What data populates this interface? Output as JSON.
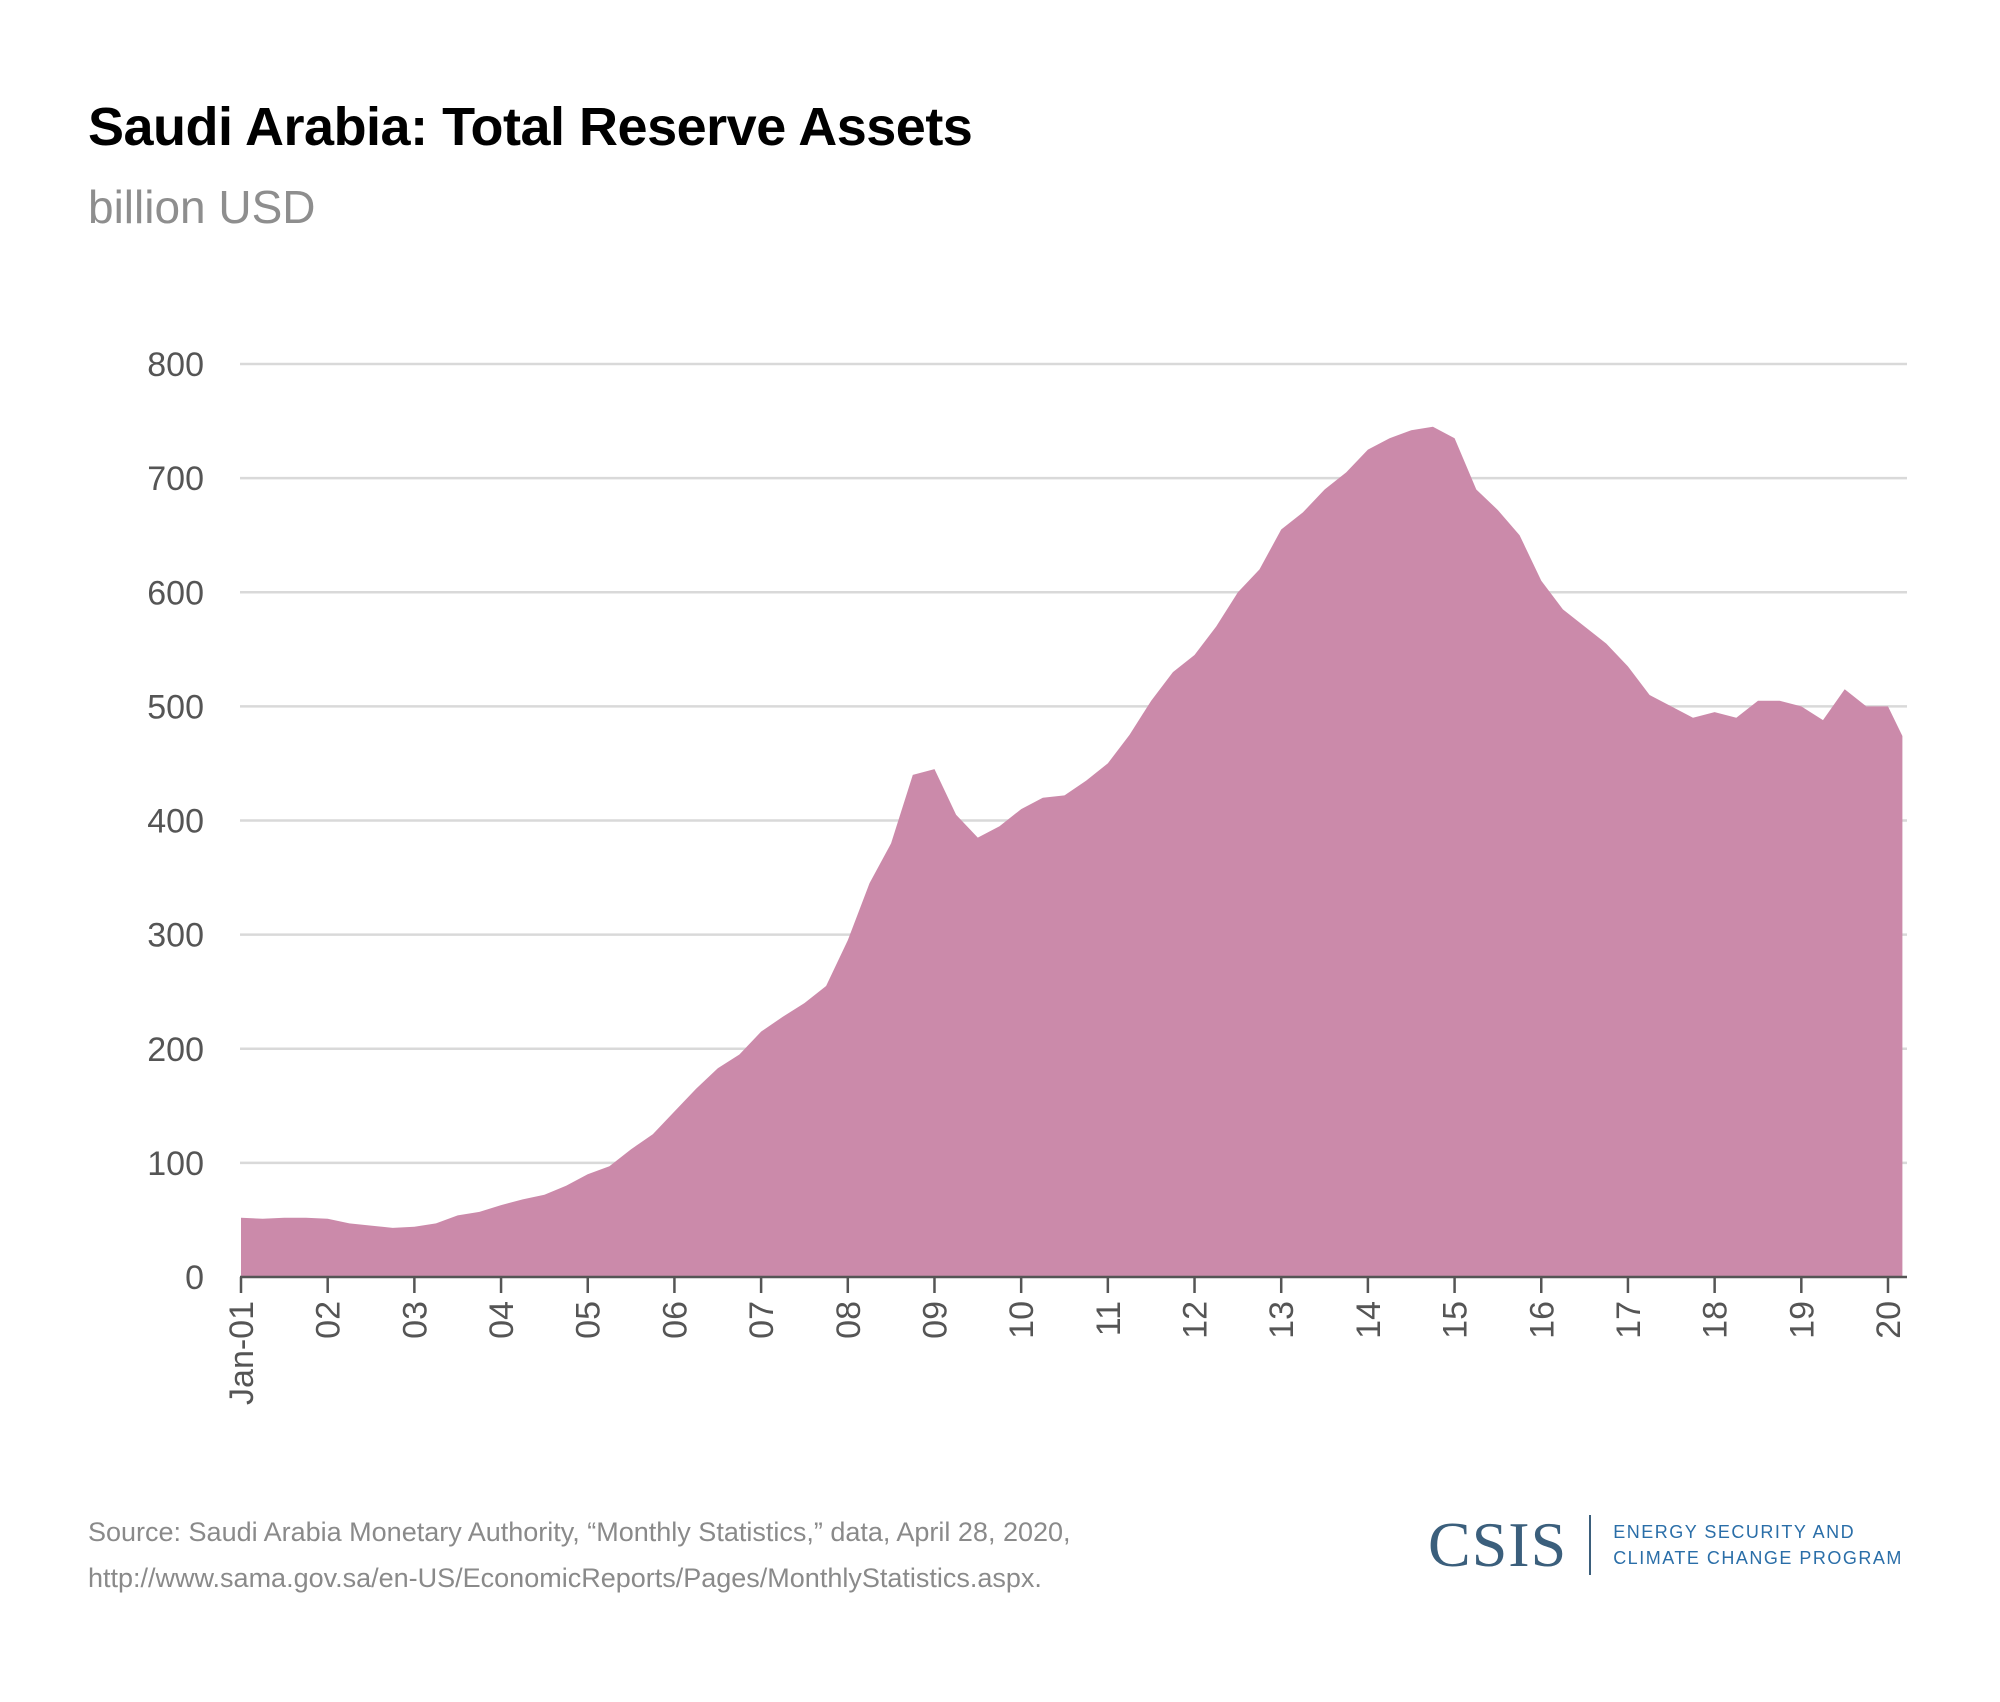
{
  "chart_data": {
    "type": "area",
    "title": "Saudi Arabia: Total Reserve Assets",
    "subtitle": "billion USD",
    "xlabel": "",
    "ylabel": "",
    "ylim": [
      0,
      800
    ],
    "yticks": [
      "0",
      "100",
      "200",
      "300",
      "400",
      "500",
      "600",
      "700",
      "800"
    ],
    "xticks": [
      {
        "date": "2001-01",
        "label": "Jan-01"
      },
      {
        "date": "2002-01",
        "label": "02"
      },
      {
        "date": "2003-01",
        "label": "03"
      },
      {
        "date": "2004-01",
        "label": "04"
      },
      {
        "date": "2005-01",
        "label": "05"
      },
      {
        "date": "2006-01",
        "label": "06"
      },
      {
        "date": "2007-01",
        "label": "07"
      },
      {
        "date": "2008-01",
        "label": "08"
      },
      {
        "date": "2009-01",
        "label": "09"
      },
      {
        "date": "2010-01",
        "label": "10"
      },
      {
        "date": "2011-01",
        "label": "11"
      },
      {
        "date": "2012-01",
        "label": "12"
      },
      {
        "date": "2013-01",
        "label": "13"
      },
      {
        "date": "2014-01",
        "label": "14"
      },
      {
        "date": "2015-01",
        "label": "15"
      },
      {
        "date": "2016-01",
        "label": "16"
      },
      {
        "date": "2017-01",
        "label": "17"
      },
      {
        "date": "2018-01",
        "label": "18"
      },
      {
        "date": "2019-01",
        "label": "19"
      },
      {
        "date": "2020-01",
        "label": "20"
      }
    ],
    "grid": true,
    "fill_color": "#cb8aaa",
    "x": [
      "2001-01",
      "2001-04",
      "2001-07",
      "2001-10",
      "2002-01",
      "2002-04",
      "2002-07",
      "2002-10",
      "2003-01",
      "2003-04",
      "2003-07",
      "2003-10",
      "2004-01",
      "2004-04",
      "2004-07",
      "2004-10",
      "2005-01",
      "2005-04",
      "2005-07",
      "2005-10",
      "2006-01",
      "2006-04",
      "2006-07",
      "2006-10",
      "2007-01",
      "2007-04",
      "2007-07",
      "2007-10",
      "2008-01",
      "2008-04",
      "2008-07",
      "2008-10",
      "2009-01",
      "2009-04",
      "2009-07",
      "2009-10",
      "2010-01",
      "2010-04",
      "2010-07",
      "2010-10",
      "2011-01",
      "2011-04",
      "2011-07",
      "2011-10",
      "2012-01",
      "2012-04",
      "2012-07",
      "2012-10",
      "2013-01",
      "2013-04",
      "2013-07",
      "2013-10",
      "2014-01",
      "2014-04",
      "2014-07",
      "2014-10",
      "2015-01",
      "2015-04",
      "2015-07",
      "2015-10",
      "2016-01",
      "2016-04",
      "2016-07",
      "2016-10",
      "2017-01",
      "2017-04",
      "2017-07",
      "2017-10",
      "2018-01",
      "2018-04",
      "2018-07",
      "2018-10",
      "2019-01",
      "2019-04",
      "2019-07",
      "2019-10",
      "2020-01",
      "2020-03"
    ],
    "values": [
      52,
      51,
      52,
      52,
      51,
      47,
      45,
      43,
      44,
      47,
      54,
      57,
      63,
      68,
      72,
      80,
      90,
      97,
      112,
      125,
      145,
      165,
      183,
      195,
      215,
      228,
      240,
      255,
      295,
      345,
      380,
      440,
      445,
      405,
      385,
      395,
      410,
      420,
      422,
      435,
      450,
      475,
      505,
      530,
      545,
      570,
      600,
      620,
      655,
      670,
      690,
      705,
      725,
      735,
      742,
      745,
      735,
      690,
      672,
      650,
      610,
      585,
      570,
      555,
      535,
      510,
      500,
      490,
      495,
      490,
      505,
      505,
      500,
      488,
      515,
      500,
      500,
      474
    ]
  },
  "source_line1": "Source: Saudi Arabia Monetary Authority, “Monthly Statistics,” data, April 28, 2020,",
  "source_line2": "http://www.sama.gov.sa/en-US/EconomicReports/Pages/MonthlyStatistics.aspx.",
  "logo": {
    "word": "CSIS",
    "program_line1": "ENERGY SECURITY AND",
    "program_line2": "CLIMATE CHANGE PROGRAM"
  }
}
